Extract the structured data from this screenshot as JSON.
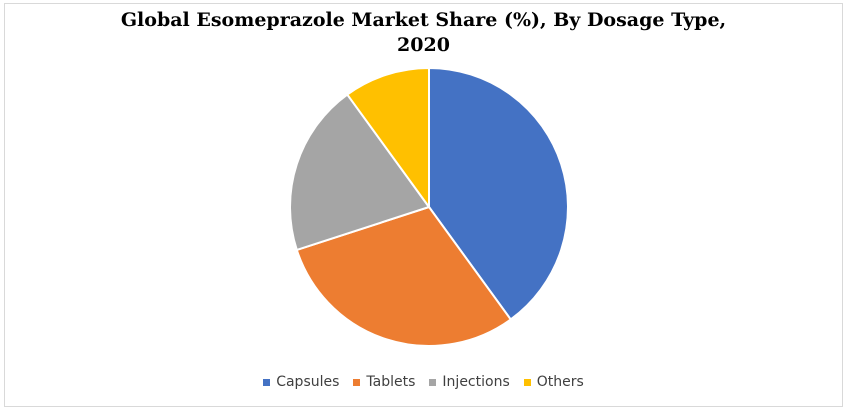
{
  "chart_data": {
    "type": "pie",
    "title_lines": [
      "Global Esomeprazole Market Share (%), By Dosage Type,",
      "2020"
    ],
    "title": "Global Esomeprazole Market Share (%), By Dosage Type, 2020",
    "categories": [
      "Capsules",
      "Tablets",
      "Injections",
      "Others"
    ],
    "values": [
      40,
      30,
      20,
      10
    ],
    "unit": "%",
    "colors": [
      "#4472C4",
      "#ED7D31",
      "#A5A5A5",
      "#FFC000"
    ],
    "start_angle_deg": 0,
    "direction": "clockwise",
    "legend_position": "bottom",
    "slice_border_color": "#FFFFFF"
  }
}
